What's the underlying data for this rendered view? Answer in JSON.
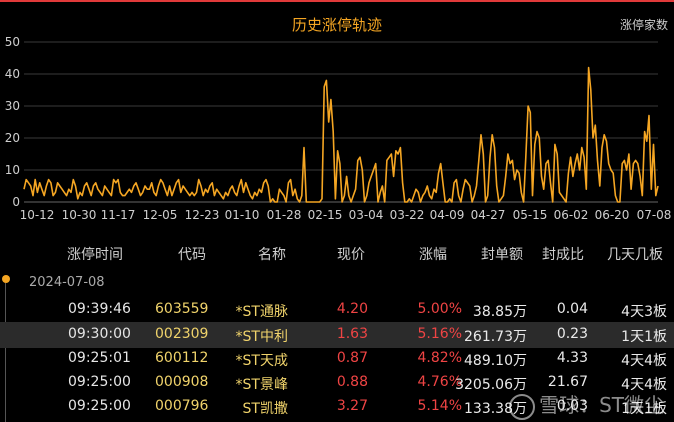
{
  "chart_data": {
    "type": "line",
    "title": "历史涨停轨迹",
    "legend": [
      "涨停家数"
    ],
    "ylim": [
      0,
      50
    ],
    "yticks": [
      "0",
      "10",
      "20",
      "30",
      "40",
      "50"
    ],
    "xticks": [
      "10-12",
      "10-30",
      "11-17",
      "12-05",
      "12-23",
      "01-10",
      "01-28",
      "02-15",
      "03-04",
      "03-22",
      "04-09",
      "04-27",
      "05-15",
      "06-02",
      "06-20",
      "07-08"
    ],
    "grid": true,
    "color": "#f5a623",
    "values": [
      4,
      7,
      6,
      5,
      2,
      7,
      3,
      6,
      4,
      2,
      5,
      7,
      6,
      2,
      3,
      6,
      5,
      4,
      3,
      2,
      4,
      3,
      7,
      5,
      1,
      3,
      2,
      5,
      6,
      4,
      2,
      5,
      6,
      4,
      3,
      2,
      5,
      4,
      3,
      2,
      7,
      6,
      7,
      3,
      2,
      2,
      3,
      4,
      3,
      5,
      6,
      4,
      2,
      3,
      5,
      4,
      4,
      6,
      3,
      2,
      5,
      7,
      6,
      4,
      2,
      5,
      2,
      4,
      6,
      7,
      3,
      5,
      4,
      3,
      2,
      3,
      2,
      3,
      7,
      5,
      2,
      4,
      3,
      5,
      6,
      2,
      4,
      3,
      2,
      1,
      3,
      2,
      4,
      5,
      3,
      2,
      5,
      7,
      3,
      6,
      4,
      2,
      1,
      3,
      2,
      4,
      3,
      6,
      7,
      5,
      0,
      1,
      0,
      0,
      4,
      3,
      2,
      0,
      6,
      7,
      2,
      4,
      1,
      0,
      2,
      17,
      0,
      0,
      0,
      0,
      0,
      0,
      0,
      1,
      36,
      38,
      25,
      32,
      22,
      1,
      16,
      12,
      0,
      2,
      8,
      2,
      0,
      2,
      4,
      13,
      14,
      10,
      0,
      2,
      6,
      8,
      10,
      12,
      0,
      3,
      5,
      0,
      13,
      14,
      15,
      8,
      16,
      15,
      17,
      6,
      0,
      0,
      1,
      0,
      2,
      4,
      3,
      0,
      2,
      3,
      5,
      2,
      1,
      4,
      3,
      9,
      12,
      6,
      0,
      0,
      1,
      0,
      6,
      7,
      2,
      0,
      4,
      7,
      6,
      5,
      0,
      2,
      5,
      13,
      21,
      15,
      0,
      2,
      14,
      21,
      17,
      5,
      0,
      1,
      2,
      8,
      15,
      12,
      13,
      7,
      10,
      9,
      3,
      0,
      14,
      30,
      28,
      2,
      18,
      22,
      20,
      8,
      4,
      12,
      13,
      6,
      0,
      18,
      15,
      3,
      2,
      1,
      0,
      9,
      14,
      8,
      12,
      15,
      10,
      17,
      14,
      4,
      42,
      35,
      20,
      24,
      13,
      5,
      17,
      21,
      19,
      12,
      10,
      9,
      2,
      0,
      0,
      12,
      13,
      10,
      15,
      4,
      12,
      13,
      12,
      8,
      2,
      22,
      19,
      27,
      4,
      18,
      2,
      5
    ]
  },
  "header": {
    "time": "涨停时间",
    "code": "代码",
    "name": "名称",
    "price": "现价",
    "pct": "涨幅",
    "amount": "封单额",
    "ratio": "封成比",
    "days": "几天几板"
  },
  "date": "2024-07-08",
  "rows": [
    {
      "time": "09:39:46",
      "code": "603559",
      "name": "*ST通脉",
      "price": "4.20",
      "pct": "5.00%",
      "amount": "38.85万",
      "ratio": "0.04",
      "days": "4天3板"
    },
    {
      "time": "09:30:00",
      "code": "002309",
      "name": "*ST中利",
      "price": "1.63",
      "pct": "5.16%",
      "amount": "261.73万",
      "ratio": "0.23",
      "days": "1天1板"
    },
    {
      "time": "09:25:01",
      "code": "600112",
      "name": "*ST天成",
      "price": "0.87",
      "pct": "4.82%",
      "amount": "489.10万",
      "ratio": "4.33",
      "days": "4天4板"
    },
    {
      "time": "09:25:00",
      "code": "000908",
      "name": "*ST景峰",
      "price": "0.88",
      "pct": "4.76%",
      "amount": "3205.06万",
      "ratio": "21.67",
      "days": "4天4板"
    },
    {
      "time": "09:25:00",
      "code": "000796",
      "name": "ST凯撒",
      "price": "3.27",
      "pct": "5.14%",
      "amount": "133.38万",
      "ratio": "0.03",
      "days": "1天1板"
    }
  ],
  "watermark": "雪球：ST微尘"
}
